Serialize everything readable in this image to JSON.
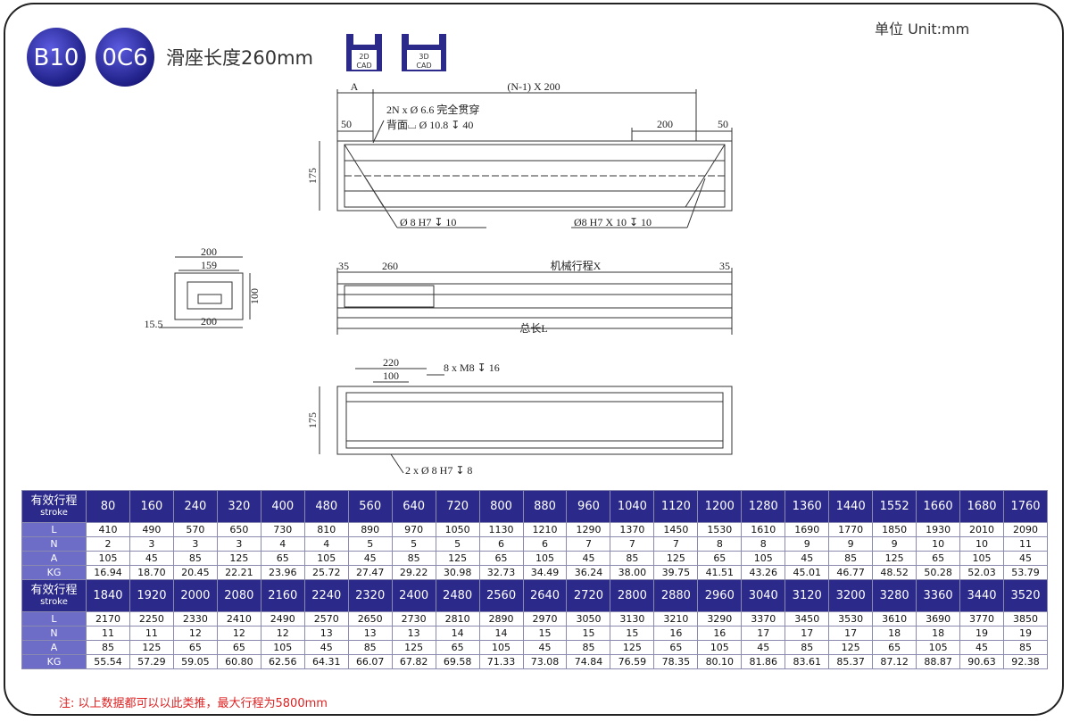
{
  "header": {
    "badges": [
      "B10",
      "0C6"
    ],
    "title": "滑座长度260mm",
    "cad": [
      {
        "top": "2D",
        "bottom": "CAD"
      },
      {
        "top": "3D",
        "bottom": "CAD"
      }
    ],
    "unit": "单位 Unit:mm"
  },
  "drawing": {
    "top_view": [
      "A",
      "(N-1) X 200",
      "2N x Ø 6.6 完全贯穿",
      "背面⌴ Ø 10.8 ↧ 40",
      "50",
      "200",
      "50",
      "175",
      "Ø 8 H7 ↧ 10",
      "Ø8 H7 X 10 ↧ 10"
    ],
    "end_view": [
      "200",
      "159",
      "100",
      "15.5",
      "200"
    ],
    "side_view": [
      "35",
      "260",
      "机械行程X",
      "35",
      "总长L"
    ],
    "bottom_view": [
      "220",
      "100",
      "8 x M8 ↧ 16",
      "175",
      "2 x Ø 8 H7 ↧ 8"
    ]
  },
  "table": {
    "blocks": [
      {
        "header": {
          "label": "有效行程",
          "sublabel": "stroke",
          "values": [
            80,
            160,
            240,
            320,
            400,
            480,
            560,
            640,
            720,
            800,
            880,
            960,
            1040,
            1120,
            1200,
            1280,
            1360,
            1440,
            1552,
            1660,
            1680,
            1760
          ]
        },
        "rows": [
          {
            "label": "L",
            "values": [
              410,
              490,
              570,
              650,
              730,
              810,
              890,
              970,
              1050,
              1130,
              1210,
              1290,
              1370,
              1450,
              1530,
              1610,
              1690,
              1770,
              1850,
              1930,
              2010,
              2090
            ]
          },
          {
            "label": "N",
            "values": [
              2,
              3,
              3,
              3,
              4,
              4,
              5,
              5,
              5,
              6,
              6,
              7,
              7,
              7,
              8,
              8,
              9,
              9,
              9,
              10,
              10,
              11
            ]
          },
          {
            "label": "A",
            "values": [
              105,
              45,
              85,
              125,
              65,
              105,
              45,
              85,
              125,
              65,
              105,
              45,
              85,
              125,
              65,
              105,
              45,
              85,
              125,
              65,
              105,
              45
            ]
          },
          {
            "label": "KG",
            "values": [
              "16.94",
              "18.70",
              "20.45",
              "22.21",
              "23.96",
              "25.72",
              "27.47",
              "29.22",
              "30.98",
              "32.73",
              "34.49",
              "36.24",
              "38.00",
              "39.75",
              "41.51",
              "43.26",
              "45.01",
              "46.77",
              "48.52",
              "50.28",
              "52.03",
              "53.79"
            ]
          }
        ]
      },
      {
        "header": {
          "label": "有效行程",
          "sublabel": "stroke",
          "values": [
            1840,
            1920,
            2000,
            2080,
            2160,
            2240,
            2320,
            2400,
            2480,
            2560,
            2640,
            2720,
            2800,
            2880,
            2960,
            3040,
            3120,
            3200,
            3280,
            3360,
            3440,
            3520
          ]
        },
        "rows": [
          {
            "label": "L",
            "values": [
              2170,
              2250,
              2330,
              2410,
              2490,
              2570,
              2650,
              2730,
              2810,
              2890,
              2970,
              3050,
              3130,
              3210,
              3290,
              3370,
              3450,
              3530,
              3610,
              3690,
              3770,
              3850
            ]
          },
          {
            "label": "N",
            "values": [
              11,
              11,
              12,
              12,
              12,
              13,
              13,
              13,
              14,
              14,
              15,
              15,
              15,
              16,
              16,
              17,
              17,
              17,
              18,
              18,
              19,
              19
            ]
          },
          {
            "label": "A",
            "values": [
              85,
              125,
              65,
              65,
              105,
              45,
              85,
              125,
              65,
              105,
              45,
              85,
              125,
              65,
              105,
              45,
              85,
              125,
              65,
              105,
              45,
              85
            ]
          },
          {
            "label": "KG",
            "values": [
              "55.54",
              "57.29",
              "59.05",
              "60.80",
              "62.56",
              "64.31",
              "66.07",
              "67.82",
              "69.58",
              "71.33",
              "73.08",
              "74.84",
              "76.59",
              "78.35",
              "80.10",
              "81.86",
              "83.61",
              "85.37",
              "87.12",
              "88.87",
              "90.63",
              "92.38"
            ]
          }
        ]
      }
    ]
  },
  "note": "注: 以上数据都可以以此类推，最大行程为5800mm"
}
